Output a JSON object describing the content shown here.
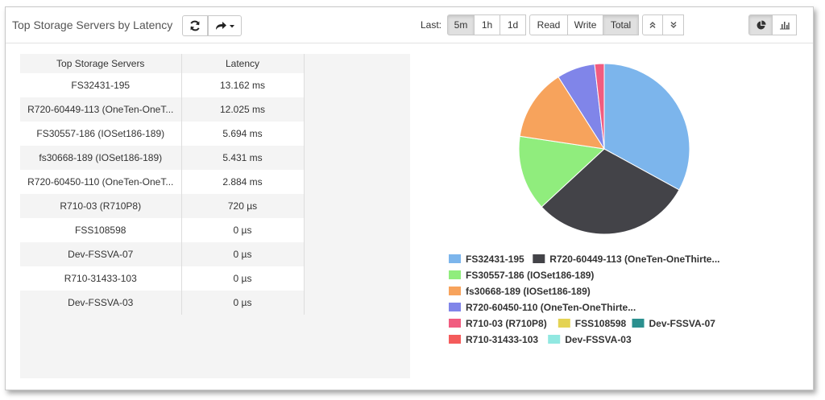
{
  "header": {
    "title": "Top Storage Servers by Latency",
    "last_label": "Last:",
    "time_ranges": [
      "5m",
      "1h",
      "1d"
    ],
    "time_selected": "5m",
    "metrics": [
      "Read",
      "Write",
      "Total"
    ],
    "metric_selected": "Total",
    "icons": {
      "refresh": "refresh-icon",
      "share": "share-icon",
      "collapse": "double-chevron-up-icon",
      "expand": "double-chevron-down-icon",
      "pie": "pie-chart-icon",
      "bar": "bar-chart-icon"
    }
  },
  "table": {
    "columns": [
      "Top Storage Servers",
      "Latency"
    ],
    "rows": [
      {
        "server": "FS32431-195",
        "latency": "13.162 ms"
      },
      {
        "server": "R720-60449-113 (OneTen-OneT...",
        "latency": "12.025 ms"
      },
      {
        "server": "FS30557-186 (IOSet186-189)",
        "latency": "5.694 ms"
      },
      {
        "server": "fs30668-189 (IOSet186-189)",
        "latency": "5.431 ms"
      },
      {
        "server": "R720-60450-110 (OneTen-OneT...",
        "latency": "2.884 ms"
      },
      {
        "server": "R710-03 (R710P8)",
        "latency": "720 µs"
      },
      {
        "server": "FSS108598",
        "latency": "0 µs"
      },
      {
        "server": "Dev-FSSVA-07",
        "latency": "0 µs"
      },
      {
        "server": "R710-31433-103",
        "latency": "0 µs"
      },
      {
        "server": "Dev-FSSVA-03",
        "latency": "0 µs"
      }
    ]
  },
  "chart_data": {
    "type": "pie",
    "unit": "ms",
    "slices": [
      {
        "label": "FS32431-195",
        "value": 13.162,
        "color": "#7cb5ec"
      },
      {
        "label": "R720-60449-113 (OneTen-OneThirte...",
        "value": 12.025,
        "color": "#434348"
      },
      {
        "label": "FS30557-186 (IOSet186-189)",
        "value": 5.694,
        "color": "#90ed7d"
      },
      {
        "label": "fs30668-189 (IOSet186-189)",
        "value": 5.431,
        "color": "#f7a35c"
      },
      {
        "label": "R720-60450-110 (OneTen-OneThirte...",
        "value": 2.884,
        "color": "#8085e9"
      },
      {
        "label": "R710-03 (R710P8)",
        "value": 0.72,
        "color": "#f15c80"
      },
      {
        "label": "FSS108598",
        "value": 0,
        "color": "#e4d354"
      },
      {
        "label": "Dev-FSSVA-07",
        "value": 0,
        "color": "#2b908f"
      },
      {
        "label": "R710-31433-103",
        "value": 0,
        "color": "#f45b5b"
      },
      {
        "label": "Dev-FSSVA-03",
        "value": 0,
        "color": "#91e8e1"
      }
    ],
    "legend_placement": "bottom"
  }
}
